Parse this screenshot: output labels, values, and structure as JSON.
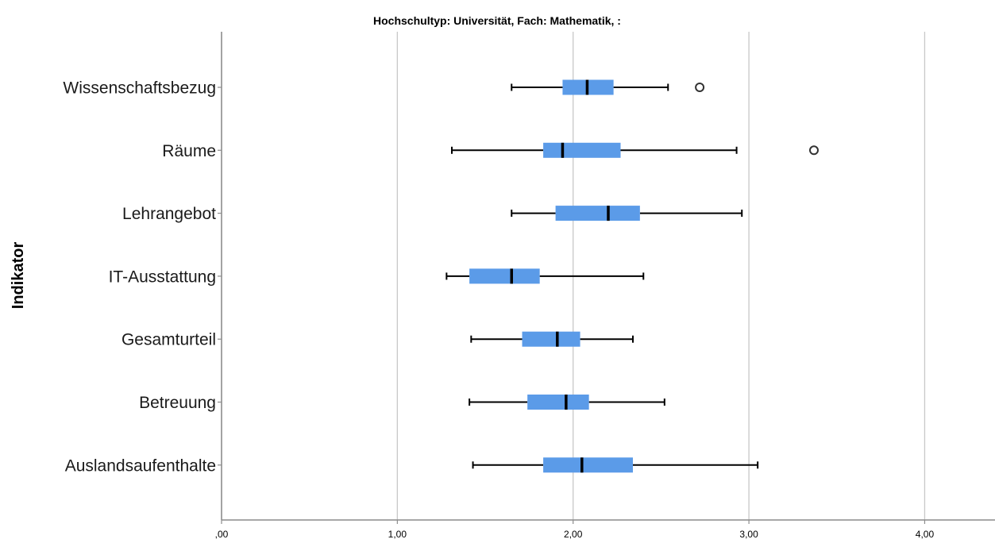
{
  "chart_data": {
    "type": "boxplot",
    "title": "Hochschultyp: Universität, Fach: Mathematik,  :",
    "ylabel": "Indikator",
    "xlabel": "",
    "orientation": "horizontal",
    "xlim": [
      0,
      4.4
    ],
    "xticks": [
      0,
      1,
      2,
      3,
      4
    ],
    "xtick_labels": [
      ",00",
      "1,00",
      "2,00",
      "3,00",
      "4,00"
    ],
    "grid": "vertical",
    "box_color": "#5b9be8",
    "categories": [
      "Wissenschaftsbezug",
      "Räume",
      "Lehrangebot",
      "IT-Ausstattung",
      "Gesamturteil",
      "Betreuung",
      "Auslandsaufenthalte"
    ],
    "boxes": [
      {
        "label": "Wissenschaftsbezug",
        "whisker_low": 1.65,
        "q1": 1.94,
        "median": 2.08,
        "q3": 2.23,
        "whisker_high": 2.54,
        "outliers": [
          2.72
        ]
      },
      {
        "label": "Räume",
        "whisker_low": 1.31,
        "q1": 1.83,
        "median": 1.94,
        "q3": 2.27,
        "whisker_high": 2.93,
        "outliers": [
          3.37
        ]
      },
      {
        "label": "Lehrangebot",
        "whisker_low": 1.65,
        "q1": 1.9,
        "median": 2.2,
        "q3": 2.38,
        "whisker_high": 2.96,
        "outliers": []
      },
      {
        "label": "IT-Ausstattung",
        "whisker_low": 1.28,
        "q1": 1.41,
        "median": 1.65,
        "q3": 1.81,
        "whisker_high": 2.4,
        "outliers": []
      },
      {
        "label": "Gesamturteil",
        "whisker_low": 1.42,
        "q1": 1.71,
        "median": 1.91,
        "q3": 2.04,
        "whisker_high": 2.34,
        "outliers": []
      },
      {
        "label": "Betreuung",
        "whisker_low": 1.41,
        "q1": 1.74,
        "median": 1.96,
        "q3": 2.09,
        "whisker_high": 2.52,
        "outliers": []
      },
      {
        "label": "Auslandsaufenthalte",
        "whisker_low": 1.43,
        "q1": 1.83,
        "median": 2.05,
        "q3": 2.34,
        "whisker_high": 3.05,
        "outliers": []
      }
    ]
  }
}
